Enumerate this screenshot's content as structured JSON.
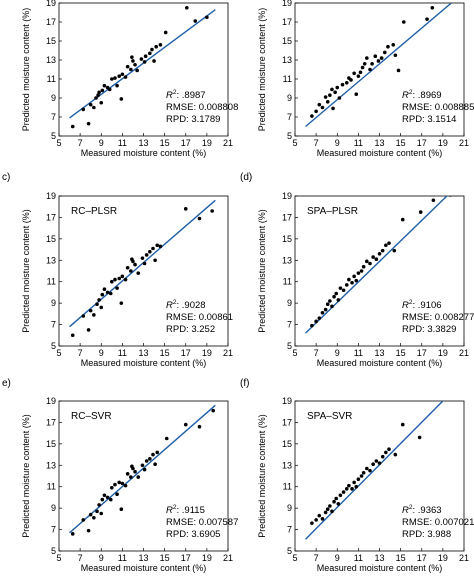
{
  "figure": {
    "xlabel": "Measured moisture content (%)",
    "ylabel": "Predicted moisture content (%)",
    "xticks": [
      5,
      7,
      9,
      11,
      13,
      15,
      17,
      19,
      21
    ],
    "yticks": [
      5,
      7,
      9,
      11,
      13,
      15,
      17,
      19
    ],
    "ytick_labels": [
      "5",
      "7",
      "9",
      "11",
      "13",
      "15",
      "17",
      "19"
    ],
    "colors": {
      "points": "#000000",
      "fit_line": "#1f5fa8",
      "axes": "#000000"
    }
  },
  "chart_data": [
    {
      "type": "scatter",
      "panel": "",
      "title": "",
      "xlabel": "Measured moisture content (%)",
      "ylabel": "Predicted moisture content (%)",
      "xlim": [
        5,
        21
      ],
      "ylim": [
        5,
        19
      ],
      "grid": false,
      "r2_label": "R",
      "r2_value": ".8987",
      "rmse": "RMSE: 0.008808",
      "rpd": "RPD: 3.1789",
      "fit_line": [
        [
          6.0,
          6.9
        ],
        [
          19.8,
          18.3
        ]
      ],
      "points": [
        [
          6.3,
          6.0
        ],
        [
          7.3,
          7.8
        ],
        [
          7.8,
          6.3
        ],
        [
          8.0,
          8.3
        ],
        [
          8.3,
          8.0
        ],
        [
          8.5,
          9.0
        ],
        [
          8.7,
          9.3
        ],
        [
          8.8,
          9.6
        ],
        [
          9.0,
          8.5
        ],
        [
          9.1,
          9.8
        ],
        [
          9.3,
          10.3
        ],
        [
          9.6,
          10.1
        ],
        [
          9.8,
          9.9
        ],
        [
          10.0,
          11.0
        ],
        [
          10.3,
          11.1
        ],
        [
          10.5,
          10.3
        ],
        [
          10.7,
          11.3
        ],
        [
          10.9,
          8.9
        ],
        [
          11.0,
          11.5
        ],
        [
          11.3,
          11.2
        ],
        [
          11.5,
          12.3
        ],
        [
          11.8,
          12.0
        ],
        [
          11.9,
          13.3
        ],
        [
          12.0,
          12.9
        ],
        [
          12.2,
          12.5
        ],
        [
          12.4,
          11.9
        ],
        [
          12.8,
          13.1
        ],
        [
          13.1,
          12.8
        ],
        [
          13.2,
          13.4
        ],
        [
          13.6,
          13.7
        ],
        [
          13.8,
          14.1
        ],
        [
          14.0,
          12.9
        ],
        [
          14.2,
          14.4
        ],
        [
          14.6,
          14.6
        ],
        [
          15.1,
          15.9
        ],
        [
          17.1,
          18.5
        ],
        [
          17.9,
          17.1
        ],
        [
          19.0,
          17.5
        ]
      ]
    },
    {
      "type": "scatter",
      "panel": "",
      "title": "",
      "xlabel": "Measured moisture content (%)",
      "ylabel": "Predicted moisture content (%)",
      "xlim": [
        5,
        21
      ],
      "ylim": [
        5,
        19
      ],
      "grid": false,
      "r2_label": "R",
      "r2_value": ".8969",
      "rmse": "RMSE: 0.008885",
      "rpd": "RPD: 3.1514",
      "fit_line": [
        [
          6.0,
          6.0
        ],
        [
          19.8,
          19.0
        ]
      ],
      "points": [
        [
          6.6,
          7.1
        ],
        [
          7.0,
          7.6
        ],
        [
          7.3,
          8.3
        ],
        [
          7.6,
          8.0
        ],
        [
          7.9,
          9.1
        ],
        [
          8.1,
          8.6
        ],
        [
          8.3,
          9.3
        ],
        [
          8.5,
          9.9
        ],
        [
          8.6,
          7.9
        ],
        [
          8.8,
          9.6
        ],
        [
          9.0,
          10.1
        ],
        [
          9.2,
          9.0
        ],
        [
          9.5,
          10.4
        ],
        [
          9.9,
          10.6
        ],
        [
          10.1,
          11.1
        ],
        [
          10.3,
          10.9
        ],
        [
          10.6,
          11.6
        ],
        [
          10.8,
          9.4
        ],
        [
          11.0,
          11.3
        ],
        [
          11.2,
          11.7
        ],
        [
          11.4,
          12.2
        ],
        [
          11.6,
          12.6
        ],
        [
          11.8,
          13.2
        ],
        [
          12.1,
          12.0
        ],
        [
          12.3,
          12.6
        ],
        [
          12.6,
          13.4
        ],
        [
          12.9,
          12.9
        ],
        [
          13.2,
          13.2
        ],
        [
          13.5,
          13.8
        ],
        [
          13.8,
          14.4
        ],
        [
          14.3,
          14.6
        ],
        [
          14.5,
          13.5
        ],
        [
          14.8,
          11.9
        ],
        [
          15.3,
          17.0
        ],
        [
          17.5,
          17.3
        ],
        [
          18.0,
          18.5
        ]
      ]
    },
    {
      "type": "scatter",
      "panel": "c)",
      "title": "RC–PLSR",
      "xlabel": "Measured moisture content (%)",
      "ylabel": "Predicted moisture content (%)",
      "xlim": [
        5,
        21
      ],
      "ylim": [
        5,
        19
      ],
      "grid": false,
      "r2_label": "R",
      "r2_value": ".9028",
      "rmse": "RMSE: 0.00861",
      "rpd": "RPD: 3.252",
      "fit_line": [
        [
          6.0,
          6.8
        ],
        [
          19.8,
          18.6
        ]
      ],
      "points": [
        [
          6.3,
          6.0
        ],
        [
          7.3,
          7.8
        ],
        [
          7.8,
          6.5
        ],
        [
          8.0,
          8.3
        ],
        [
          8.3,
          7.9
        ],
        [
          8.6,
          8.9
        ],
        [
          8.8,
          9.3
        ],
        [
          9.0,
          8.6
        ],
        [
          9.1,
          9.8
        ],
        [
          9.3,
          10.3
        ],
        [
          9.6,
          10.0
        ],
        [
          9.9,
          9.9
        ],
        [
          10.0,
          11.0
        ],
        [
          10.3,
          11.2
        ],
        [
          10.5,
          10.4
        ],
        [
          10.7,
          11.3
        ],
        [
          10.9,
          9.0
        ],
        [
          11.0,
          11.5
        ],
        [
          11.3,
          11.2
        ],
        [
          11.5,
          12.3
        ],
        [
          11.8,
          12.0
        ],
        [
          11.9,
          13.1
        ],
        [
          12.0,
          12.9
        ],
        [
          12.2,
          12.6
        ],
        [
          12.5,
          11.8
        ],
        [
          12.9,
          13.2
        ],
        [
          13.1,
          12.7
        ],
        [
          13.3,
          13.5
        ],
        [
          13.6,
          13.8
        ],
        [
          13.9,
          14.1
        ],
        [
          14.1,
          13.0
        ],
        [
          14.3,
          14.4
        ],
        [
          14.6,
          14.3
        ],
        [
          17.0,
          17.8
        ],
        [
          18.3,
          16.9
        ],
        [
          19.5,
          17.6
        ]
      ]
    },
    {
      "type": "scatter",
      "panel": "(d)",
      "title": "SPA–PLSR",
      "xlabel": "Measured moisture content (%)",
      "ylabel": "Predicted moisture content (%)",
      "xlim": [
        5,
        21
      ],
      "ylim": [
        5,
        19
      ],
      "grid": false,
      "r2_label": "R",
      "r2_value": ".9106",
      "rmse": "RMSE: 0.008277",
      "rpd": "RPD: 3.3829",
      "fit_line": [
        [
          6.0,
          6.2
        ],
        [
          19.8,
          19.4
        ]
      ],
      "points": [
        [
          6.6,
          6.9
        ],
        [
          7.0,
          7.3
        ],
        [
          7.3,
          7.6
        ],
        [
          7.6,
          8.1
        ],
        [
          7.9,
          8.4
        ],
        [
          8.1,
          8.9
        ],
        [
          8.3,
          9.2
        ],
        [
          8.5,
          8.7
        ],
        [
          8.7,
          9.6
        ],
        [
          8.9,
          9.9
        ],
        [
          9.1,
          9.3
        ],
        [
          9.3,
          10.4
        ],
        [
          9.6,
          10.2
        ],
        [
          9.9,
          10.7
        ],
        [
          10.1,
          11.2
        ],
        [
          10.4,
          10.9
        ],
        [
          10.6,
          11.5
        ],
        [
          10.8,
          11.1
        ],
        [
          11.0,
          11.8
        ],
        [
          11.3,
          12.0
        ],
        [
          11.5,
          12.4
        ],
        [
          11.8,
          12.9
        ],
        [
          12.1,
          12.7
        ],
        [
          12.4,
          13.3
        ],
        [
          12.7,
          13.1
        ],
        [
          13.0,
          13.6
        ],
        [
          13.3,
          13.9
        ],
        [
          13.6,
          14.4
        ],
        [
          13.9,
          14.6
        ],
        [
          14.4,
          13.9
        ],
        [
          15.2,
          16.8
        ],
        [
          16.9,
          17.5
        ],
        [
          18.1,
          18.6
        ],
        [
          19.7,
          19.1
        ]
      ]
    },
    {
      "type": "scatter",
      "panel": "e)",
      "title": "RC–SVR",
      "xlabel": "Measured moisture content (%)",
      "ylabel": "Predicted moisture content (%)",
      "xlim": [
        5,
        21
      ],
      "ylim": [
        5,
        19
      ],
      "grid": false,
      "r2_label": "R",
      "r2_value": ".9115",
      "rmse": "RMSE: 0.007587",
      "rpd": "RPD: 3.6905",
      "fit_line": [
        [
          6.0,
          6.7
        ],
        [
          19.8,
          18.6
        ]
      ],
      "points": [
        [
          6.3,
          6.6
        ],
        [
          7.3,
          7.9
        ],
        [
          7.8,
          6.9
        ],
        [
          8.0,
          8.4
        ],
        [
          8.3,
          8.1
        ],
        [
          8.6,
          8.7
        ],
        [
          8.8,
          9.3
        ],
        [
          9.0,
          8.5
        ],
        [
          9.1,
          9.8
        ],
        [
          9.3,
          10.2
        ],
        [
          9.6,
          10.0
        ],
        [
          9.9,
          9.8
        ],
        [
          10.0,
          10.9
        ],
        [
          10.3,
          11.2
        ],
        [
          10.5,
          10.3
        ],
        [
          10.7,
          11.4
        ],
        [
          10.9,
          8.9
        ],
        [
          11.0,
          11.3
        ],
        [
          11.3,
          11.1
        ],
        [
          11.5,
          12.2
        ],
        [
          11.8,
          11.9
        ],
        [
          11.9,
          12.9
        ],
        [
          12.0,
          12.7
        ],
        [
          12.2,
          12.4
        ],
        [
          12.5,
          11.9
        ],
        [
          12.9,
          13.0
        ],
        [
          13.1,
          12.6
        ],
        [
          13.3,
          13.4
        ],
        [
          13.6,
          13.6
        ],
        [
          13.9,
          14.0
        ],
        [
          14.1,
          13.1
        ],
        [
          14.3,
          14.2
        ],
        [
          15.2,
          15.5
        ],
        [
          17.0,
          16.8
        ],
        [
          18.3,
          16.6
        ],
        [
          19.6,
          18.1
        ]
      ]
    },
    {
      "type": "scatter",
      "panel": "(f)",
      "title": "SPA–SVR",
      "xlabel": "Measured moisture content (%)",
      "ylabel": "Predicted moisture content (%)",
      "xlim": [
        5,
        21
      ],
      "ylim": [
        5,
        19
      ],
      "grid": false,
      "r2_label": "R",
      "r2_value": ".9363",
      "rmse": "RMSE: 0.007021",
      "rpd": "RPD: 3.988",
      "fit_line": [
        [
          6.0,
          6.1
        ],
        [
          19.8,
          19.8
        ]
      ],
      "points": [
        [
          6.6,
          7.6
        ],
        [
          7.0,
          7.9
        ],
        [
          7.3,
          8.3
        ],
        [
          7.6,
          8.0
        ],
        [
          7.9,
          8.6
        ],
        [
          8.1,
          8.9
        ],
        [
          8.3,
          9.2
        ],
        [
          8.5,
          8.7
        ],
        [
          8.7,
          9.6
        ],
        [
          8.9,
          9.9
        ],
        [
          9.1,
          9.4
        ],
        [
          9.3,
          10.2
        ],
        [
          9.6,
          10.5
        ],
        [
          9.9,
          10.8
        ],
        [
          10.1,
          11.1
        ],
        [
          10.4,
          10.8
        ],
        [
          10.6,
          11.4
        ],
        [
          10.8,
          11.0
        ],
        [
          11.0,
          11.7
        ],
        [
          11.3,
          12.0
        ],
        [
          11.5,
          12.3
        ],
        [
          11.8,
          12.7
        ],
        [
          12.1,
          12.5
        ],
        [
          12.4,
          13.1
        ],
        [
          12.7,
          13.4
        ],
        [
          13.0,
          13.2
        ],
        [
          13.3,
          13.8
        ],
        [
          13.6,
          14.2
        ],
        [
          13.9,
          14.5
        ],
        [
          14.5,
          14.0
        ],
        [
          15.2,
          16.8
        ],
        [
          16.8,
          15.6
        ],
        [
          17.9,
          19.4
        ],
        [
          19.5,
          19.5
        ]
      ]
    }
  ]
}
